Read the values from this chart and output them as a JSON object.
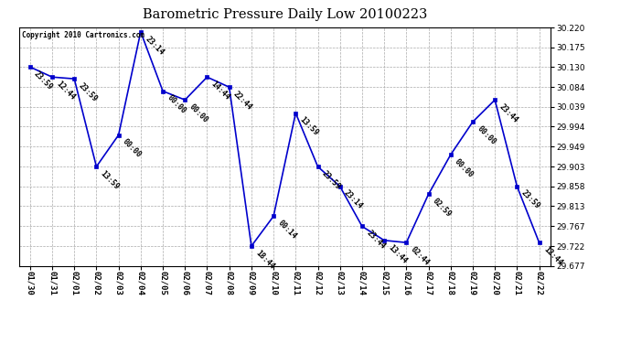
{
  "title": "Barometric Pressure Daily Low 20100223",
  "copyright": "Copyright 2010 Cartronics.com",
  "line_color": "#0000CC",
  "marker_color": "#0000CC",
  "bg_color": "#ffffff",
  "grid_color": "#aaaaaa",
  "x_labels": [
    "01/30",
    "01/31",
    "02/01",
    "02/02",
    "02/03",
    "02/04",
    "02/05",
    "02/06",
    "02/07",
    "02/08",
    "02/09",
    "02/10",
    "02/11",
    "02/12",
    "02/13",
    "02/14",
    "02/15",
    "02/16",
    "02/17",
    "02/18",
    "02/19",
    "02/20",
    "02/21",
    "02/22"
  ],
  "point_labels": [
    "23:59",
    "12:44",
    "23:59",
    "13:59",
    "00:00",
    "23:14",
    "00:00",
    "00:00",
    "14:44",
    "22:44",
    "18:44",
    "00:14",
    "13:59",
    "23:59",
    "23:14",
    "23:44",
    "13:44",
    "02:44",
    "02:59",
    "00:00",
    "00:00",
    "23:44",
    "23:59",
    "12:44"
  ],
  "y_values": [
    30.13,
    30.107,
    30.103,
    29.903,
    29.975,
    30.21,
    30.075,
    30.055,
    30.107,
    30.084,
    29.722,
    29.79,
    30.025,
    29.903,
    29.858,
    29.767,
    29.735,
    29.73,
    29.84,
    29.93,
    30.005,
    30.055,
    29.858,
    29.73
  ],
  "y_ticks": [
    29.677,
    29.722,
    29.767,
    29.813,
    29.858,
    29.903,
    29.949,
    29.994,
    30.039,
    30.084,
    30.13,
    30.175,
    30.22
  ],
  "y_min": 29.677,
  "y_max": 30.22,
  "label_fontsize": 6.0,
  "tick_fontsize": 6.5,
  "title_fontsize": 10.5
}
